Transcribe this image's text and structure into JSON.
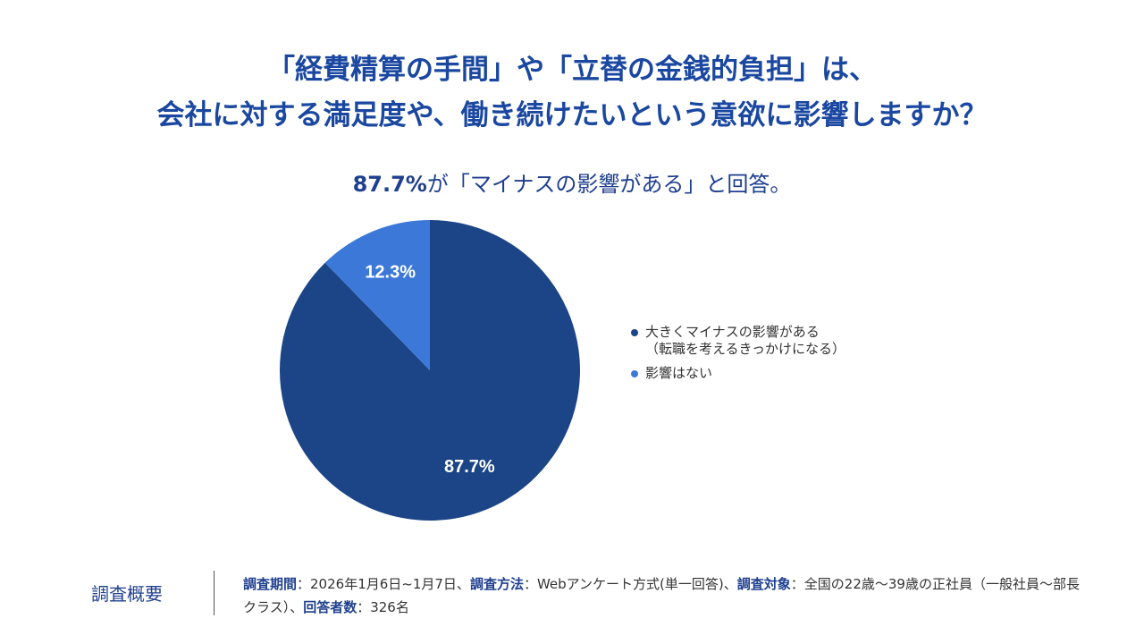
{
  "chart_data": {
    "type": "pie",
    "title": [
      "「経費精算の手間」や「立替の金銭的負担」は、",
      "会社に対する満足度や、働き続けたいという意欲に影響しますか？"
    ],
    "subtitle": [
      "87.7%",
      "が「マイナスの影響がある」と回答。"
    ],
    "categories": [
      "大きくマイナスの影響がある\n（転職を考えるきっかけになる）",
      "影響はない"
    ],
    "values": [
      87.7,
      12.3
    ],
    "value_labels": [
      "87.7%",
      "12.3%"
    ],
    "colors": [
      "#1c4587",
      "#3c78d8"
    ],
    "legend": "right"
  },
  "footer": {
    "label": "調査概要",
    "items": [
      {
        "key": "調査期間",
        "text": "：2026年1月6日~1月7日、"
      },
      {
        "key": "調査方法",
        "text": "：Webアンケート方式(単一回答)、"
      },
      {
        "key": "調査対象",
        "text": "：全国の22歳〜39歳の正社員（一般社員〜部長クラス）、"
      },
      {
        "key": "回答者数",
        "text": "：326名"
      }
    ]
  }
}
